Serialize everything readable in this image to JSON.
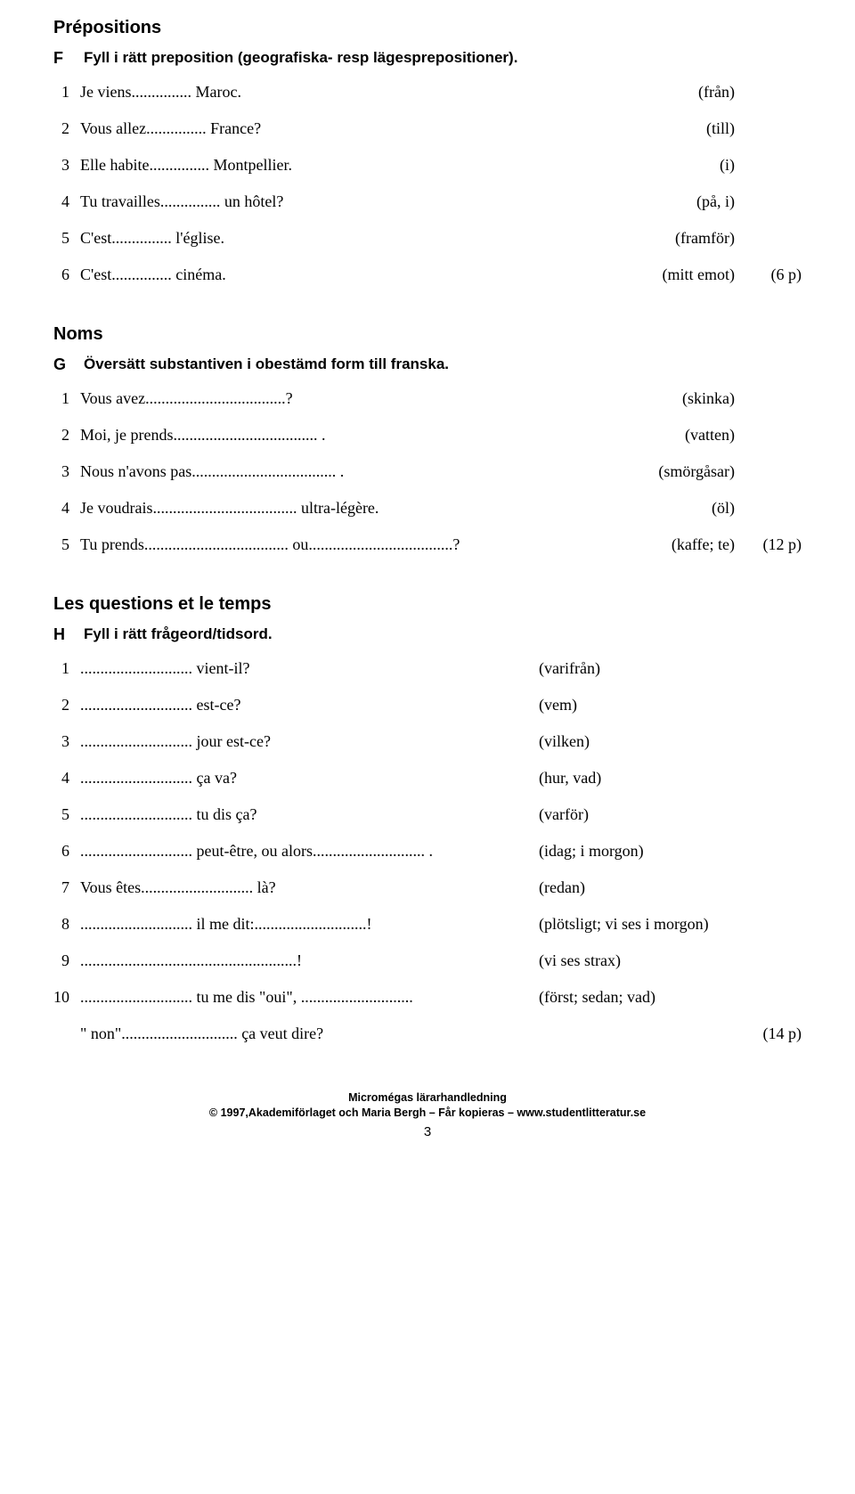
{
  "sections": {
    "F": {
      "title": "Prépositions",
      "letter": "F",
      "instruction": "Fyll i rätt preposition (geografiska- resp lägesprepositioner).",
      "rows": [
        {
          "num": "1",
          "main": "Je viens............... Maroc.",
          "hint": "(från)",
          "points": ""
        },
        {
          "num": "2",
          "main": "Vous allez............... France?",
          "hint": "(till)",
          "points": ""
        },
        {
          "num": "3",
          "main": "Elle habite............... Montpellier.",
          "hint": "(i)",
          "points": ""
        },
        {
          "num": "4",
          "main": "Tu travailles............... un hôtel?",
          "hint": "(på, i)",
          "points": ""
        },
        {
          "num": "5",
          "main": "C'est............... l'église.",
          "hint": "(framför)",
          "points": ""
        },
        {
          "num": "6",
          "main": "C'est............... cinéma.",
          "hint": "(mitt emot)",
          "points": "(6 p)"
        }
      ]
    },
    "G": {
      "title": "Noms",
      "letter": "G",
      "instruction": "Översätt substantiven i obestämd form till franska.",
      "rows": [
        {
          "num": "1",
          "main": "Vous avez...................................?",
          "hint": "(skinka)",
          "points": ""
        },
        {
          "num": "2",
          "main": "Moi, je prends.................................... .",
          "hint": "(vatten)",
          "points": ""
        },
        {
          "num": "3",
          "main": "Nous n'avons pas.................................... .",
          "hint": "(smörgåsar)",
          "points": ""
        },
        {
          "num": "4",
          "main": "Je voudrais.................................... ultra-légère.",
          "hint": "(öl)",
          "points": ""
        },
        {
          "num": "5",
          "main": "Tu prends.................................... ou....................................?",
          "hint": "(kaffe; te)",
          "points": "(12 p)"
        }
      ]
    },
    "H": {
      "title": "Les questions et le temps",
      "letter": "H",
      "instruction": "Fyll i rätt frågeord/tidsord.",
      "rows": [
        {
          "num": "1",
          "main": "............................ vient-il?",
          "hint": "(varifrån)",
          "points": ""
        },
        {
          "num": "2",
          "main": "............................ est-ce?",
          "hint": "(vem)",
          "points": ""
        },
        {
          "num": "3",
          "main": "............................ jour est-ce?",
          "hint": "(vilken)",
          "points": ""
        },
        {
          "num": "4",
          "main": "............................ ça va?",
          "hint": "(hur, vad)",
          "points": ""
        },
        {
          "num": "5",
          "main": "............................ tu dis ça?",
          "hint": "(varför)",
          "points": ""
        },
        {
          "num": "6",
          "main": "............................ peut-être, ou alors............................ .",
          "hint": "(idag; i morgon)",
          "points": ""
        },
        {
          "num": "7",
          "main": "Vous êtes............................ là?",
          "hint": "(redan)",
          "points": ""
        },
        {
          "num": "8",
          "main": "............................ il me dit:............................!",
          "hint": "(plötsligt; vi ses i morgon)",
          "points": ""
        },
        {
          "num": "9",
          "main": "......................................................!",
          "hint": "(vi ses strax)",
          "points": ""
        },
        {
          "num": "10",
          "main": "............................ tu me dis \"oui\", ............................",
          "hint": "(först; sedan; vad)",
          "points": ""
        },
        {
          "num": "",
          "main": "\" non\"............................. ça veut dire?",
          "hint": "",
          "points": "(14 p)"
        }
      ]
    }
  },
  "footer": {
    "line1": "Micromégas lärarhandledning",
    "line2": "© 1997,Akademiförlaget och Maria Bergh – Får kopieras – www.studentlitteratur.se",
    "page": "3"
  }
}
